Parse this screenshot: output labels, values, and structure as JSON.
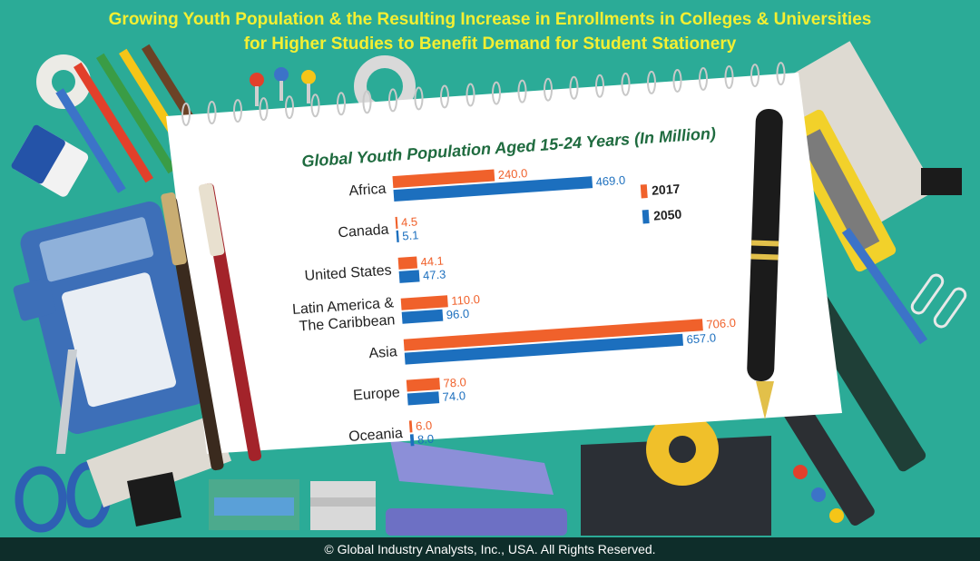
{
  "header": {
    "title_line1": "Growing Youth Population & the Resulting Increase in Enrollments in Colleges & Universities",
    "title_line2": "for Higher Studies to Benefit Demand for Student Stationery"
  },
  "footer": {
    "copyright": "© Global Industry Analysts, Inc., USA. All Rights Reserved."
  },
  "colors": {
    "background": "#2bab97",
    "title": "#f4ef32",
    "series_2017": "#f0612b",
    "series_2050": "#1c6fbe",
    "footer": "#0e2d2a"
  },
  "chart_data": {
    "type": "bar",
    "orientation": "horizontal",
    "title": "Global Youth Population Aged 15-24 Years (In Million)",
    "categories": [
      [
        "Africa"
      ],
      [
        "Canada"
      ],
      [
        "United States"
      ],
      [
        "Latin America &",
        "The Caribbean"
      ],
      [
        "Asia"
      ],
      [
        "Europe"
      ],
      [
        "Oceania"
      ]
    ],
    "series": [
      {
        "name": "2017",
        "color": "#f0612b",
        "values": [
          240.0,
          4.5,
          44.1,
          110.0,
          706.0,
          78.0,
          6.0
        ],
        "labels": [
          "240.0",
          "4.5",
          "44.1",
          "110.0",
          "706.0",
          "78.0",
          "6.0"
        ]
      },
      {
        "name": "2050",
        "color": "#1c6fbe",
        "values": [
          469.0,
          5.1,
          47.3,
          96.0,
          657.0,
          74.0,
          8.0
        ],
        "labels": [
          "469.0",
          "5.1",
          "47.3",
          "96.0",
          "657.0",
          "74.0",
          "8.0"
        ]
      }
    ],
    "legend_position": "right",
    "grid": false
  }
}
